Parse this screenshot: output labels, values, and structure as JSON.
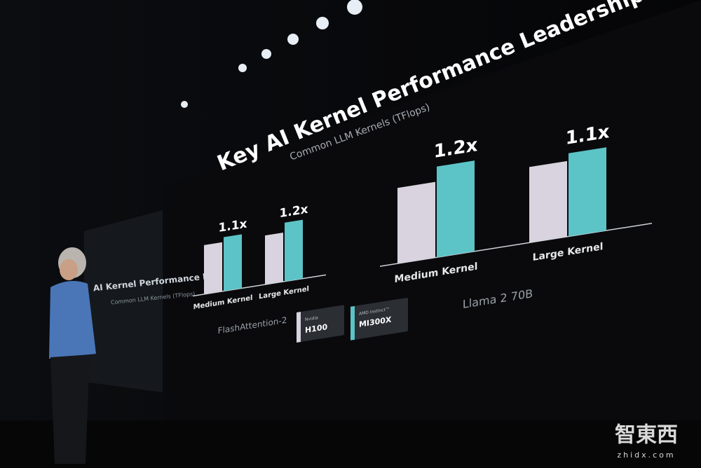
{
  "slide": {
    "title": "Key AI Kernel Performance Leadership",
    "subtitle": "Common LLM Kernels (TFlops)"
  },
  "chart_data": [
    {
      "type": "bar",
      "title": "FlashAttention-2",
      "categories": [
        "Medium Kernel",
        "Large Kernel"
      ],
      "series": [
        {
          "name": "H100",
          "vendor": "Nvidia",
          "color": "#d8d3df",
          "values": [
            1,
            1
          ]
        },
        {
          "name": "MI300X",
          "vendor": "AMD Instinct™",
          "color": "#5cc3c6",
          "values": [
            1.1,
            1.2
          ],
          "value_labels": [
            "1.1x",
            "1.2x"
          ]
        }
      ]
    },
    {
      "type": "bar",
      "title": "Llama 2 70B",
      "categories": [
        "Medium Kernel",
        "Large Kernel"
      ],
      "series": [
        {
          "color": "#d8d3df",
          "values": [
            1,
            1
          ]
        },
        {
          "color": "#5cc3c6",
          "values": [
            1.2,
            1.1
          ],
          "value_labels": [
            "1.2x",
            "1.1x"
          ]
        }
      ]
    }
  ],
  "side_screen": {
    "title": "AI Kernel Performance Le",
    "subtitle": "Common LLM Kernels (TFlops)"
  },
  "watermark": {
    "logo": "智東西",
    "url": "zhidx.com"
  }
}
